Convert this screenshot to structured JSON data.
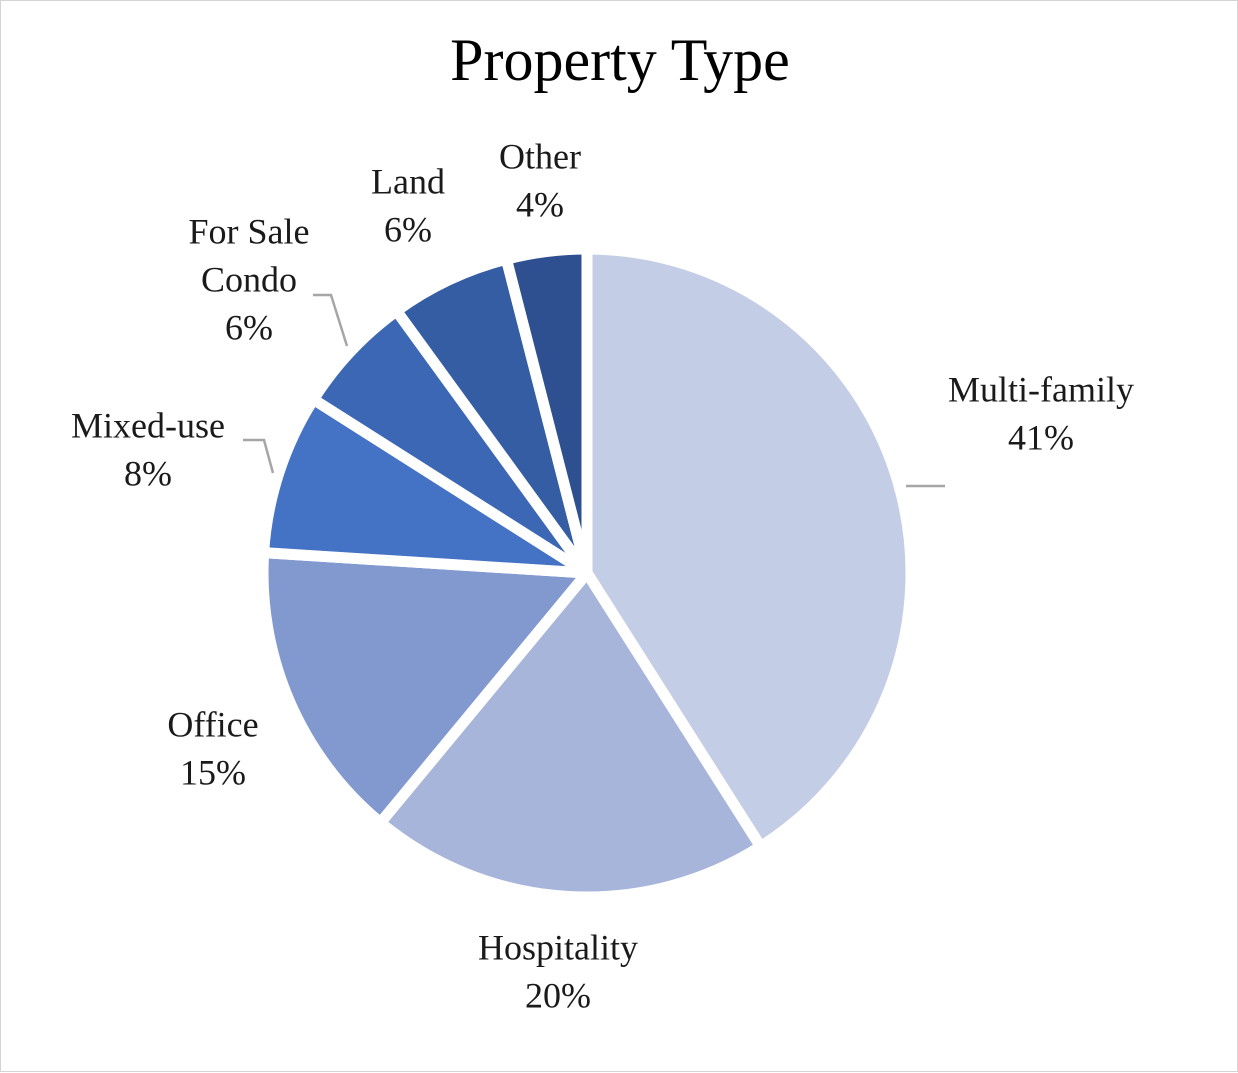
{
  "chart_data": {
    "type": "pie",
    "title": "Property Type",
    "slices": [
      {
        "label": "Multi-family",
        "percent_label": "41%",
        "value": 41,
        "color": "#c3cde6"
      },
      {
        "label": "Hospitality",
        "percent_label": "20%",
        "value": 20,
        "color": "#a7b5da"
      },
      {
        "label": "Office",
        "percent_label": "15%",
        "value": 15,
        "color": "#8299cf"
      },
      {
        "label": "Mixed-use",
        "percent_label": "8%",
        "value": 8,
        "color": "#4472c4"
      },
      {
        "label": "For Sale Condo",
        "label_lines": [
          "For Sale",
          "Condo"
        ],
        "percent_label": "6%",
        "value": 6,
        "color": "#3c67b5"
      },
      {
        "label": "Land",
        "percent_label": "6%",
        "value": 6,
        "color": "#355da3"
      },
      {
        "label": "Other",
        "percent_label": "4%",
        "value": 4,
        "color": "#2f5090"
      }
    ],
    "start": "12 o'clock",
    "direction": "clockwise",
    "legend": "none",
    "data_labels": "outside",
    "leader_line_color": "#a6a6a6"
  }
}
